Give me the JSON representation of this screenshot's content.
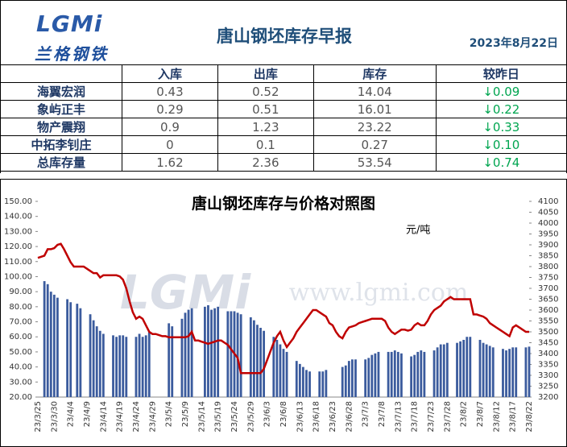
{
  "header": {
    "logo": "LGMi",
    "brand": "兰格钢铁",
    "title": "唐山钢坯库存早报",
    "date": "2023年8月22日"
  },
  "table": {
    "columns": [
      "入库",
      "出库",
      "库存",
      "较昨日"
    ],
    "rows": [
      [
        "海翼宏润",
        "0.43",
        "0.52",
        "14.04",
        "↓0.09"
      ],
      [
        "象屿正丰",
        "0.29",
        "0.51",
        "16.01",
        "↓0.22"
      ],
      [
        "物产震翔",
        "0.9",
        "1.23",
        "23.22",
        "↓0.33"
      ],
      [
        "中拓李钊庄",
        "0",
        "0.1",
        "0.27",
        "↓0.10"
      ],
      [
        "总库存量",
        "1.62",
        "2.36",
        "53.54",
        "↓0.74"
      ]
    ]
  },
  "chart_data": {
    "type": "combo",
    "title": "唐山钢坯库存与价格对照图",
    "y2_unit": "元/吨",
    "watermark": [
      "LGMi",
      "www.lgmi.com"
    ],
    "categories": [
      "23/3/25",
      null,
      null,
      null,
      null,
      "23/3/30",
      null,
      null,
      null,
      null,
      "23/4/4",
      null,
      null,
      null,
      null,
      "23/4/9",
      null,
      null,
      null,
      null,
      "23/4/14",
      null,
      null,
      null,
      null,
      "23/4/19",
      null,
      null,
      null,
      null,
      "23/4/24",
      null,
      null,
      null,
      null,
      "23/4/29",
      null,
      null,
      null,
      null,
      "23/5/4",
      null,
      null,
      null,
      null,
      "23/5/9",
      null,
      null,
      null,
      null,
      "23/5/14",
      null,
      null,
      null,
      null,
      "23/5/19",
      null,
      null,
      null,
      null,
      "23/5/24",
      null,
      null,
      null,
      null,
      "23/5/29",
      null,
      null,
      null,
      null,
      "23/6/3",
      null,
      null,
      null,
      null,
      "23/6/8",
      null,
      null,
      null,
      null,
      "23/6/13",
      null,
      null,
      null,
      null,
      "23/6/18",
      null,
      null,
      null,
      null,
      "23/6/23",
      null,
      null,
      null,
      null,
      "23/6/28",
      null,
      null,
      null,
      null,
      "23/7/3",
      null,
      null,
      null,
      null,
      "23/7/8",
      null,
      null,
      null,
      null,
      "23/7/13",
      null,
      null,
      null,
      null,
      "23/7/18",
      null,
      null,
      null,
      null,
      "23/7/23",
      null,
      null,
      null,
      null,
      "23/7/28",
      null,
      null,
      null,
      null,
      "23/8/2",
      null,
      null,
      null,
      null,
      "23/8/7",
      null,
      null,
      null,
      null,
      "23/8/12",
      null,
      null,
      null,
      null,
      "23/8/17",
      null,
      null,
      null,
      null,
      "23/8/22"
    ],
    "series": [
      {
        "type": "bar",
        "color": "#3b5b9d",
        "values": [
          null,
          null,
          97,
          95,
          90,
          88,
          86,
          null,
          null,
          85,
          83,
          null,
          82,
          79,
          null,
          null,
          75,
          71,
          67,
          64,
          62,
          null,
          null,
          61,
          60,
          61,
          61,
          60,
          null,
          null,
          60,
          62,
          60,
          61,
          63,
          null,
          null,
          null,
          null,
          null,
          69,
          67,
          null,
          null,
          72,
          76,
          78,
          79,
          null,
          null,
          null,
          80,
          81,
          78,
          79,
          80,
          null,
          null,
          77,
          77,
          77,
          76,
          75,
          null,
          null,
          73,
          71,
          68,
          66,
          64,
          null,
          null,
          60,
          58,
          55,
          52,
          50,
          null,
          null,
          44,
          42,
          40,
          38,
          37,
          null,
          null,
          37,
          37,
          38,
          null,
          null,
          null,
          null,
          40,
          41,
          44,
          45,
          45,
          null,
          null,
          45,
          46,
          48,
          49,
          50,
          null,
          null,
          50,
          50,
          51,
          50,
          49,
          null,
          null,
          47,
          48,
          50,
          51,
          50,
          null,
          null,
          51,
          53,
          55,
          55,
          56,
          null,
          null,
          56,
          57,
          58,
          60,
          60,
          null,
          null,
          58,
          56,
          55,
          54,
          53,
          null,
          null,
          52,
          51,
          52,
          53,
          53,
          null,
          null,
          53,
          53.5
        ]
      },
      {
        "type": "line",
        "axis": "y2",
        "color": "#c00000",
        "values": [
          3840,
          3845,
          3850,
          3880,
          3880,
          3885,
          3900,
          3905,
          3880,
          3850,
          3820,
          3800,
          3800,
          3800,
          3800,
          3790,
          3780,
          3770,
          3770,
          3750,
          3760,
          3760,
          3760,
          3760,
          3760,
          3755,
          3740,
          3700,
          3640,
          3590,
          3560,
          3570,
          3560,
          3530,
          3500,
          3490,
          3490,
          3485,
          3480,
          3480,
          3475,
          3475,
          3475,
          3475,
          3475,
          3475,
          3480,
          3500,
          3460,
          3460,
          3455,
          3450,
          3445,
          3450,
          3455,
          3460,
          3460,
          3450,
          3440,
          3420,
          3400,
          3380,
          3310,
          3310,
          3310,
          3310,
          3310,
          3310,
          3310,
          3330,
          3370,
          3410,
          3450,
          3480,
          3500,
          3460,
          3430,
          3450,
          3470,
          3500,
          3520,
          3540,
          3560,
          3580,
          3600,
          3600,
          3590,
          3580,
          3570,
          3540,
          3530,
          3500,
          3480,
          3470,
          3500,
          3520,
          3525,
          3530,
          3540,
          3545,
          3550,
          3555,
          3560,
          3560,
          3560,
          3560,
          3550,
          3520,
          3500,
          3490,
          3500,
          3510,
          3510,
          3505,
          3510,
          3530,
          3540,
          3530,
          3530,
          3550,
          3580,
          3600,
          3610,
          3620,
          3640,
          3650,
          3660,
          3650,
          3650,
          3650,
          3650,
          3650,
          3650,
          3580,
          3580,
          3575,
          3570,
          3560,
          3540,
          3530,
          3520,
          3510,
          3500,
          3490,
          3480,
          3520,
          3530,
          3520,
          3510,
          3500,
          3500
        ]
      }
    ],
    "ylim": [
      20,
      150
    ],
    "yticks": [
      {
        "value": 20,
        "label": "20.00"
      },
      {
        "value": 30,
        "label": "30.00"
      },
      {
        "value": 40,
        "label": "40.00"
      },
      {
        "value": 50,
        "label": "50.00"
      },
      {
        "value": 60,
        "label": "60.00"
      },
      {
        "value": 70,
        "label": "70.00"
      },
      {
        "value": 80,
        "label": "80.00"
      },
      {
        "value": 90,
        "label": "90.00"
      },
      {
        "value": 100,
        "label": "100.00"
      },
      {
        "value": 110,
        "label": "110.00"
      },
      {
        "value": 120,
        "label": "120.00"
      },
      {
        "value": 130,
        "label": "130.00"
      },
      {
        "value": 140,
        "label": "140.00"
      },
      {
        "value": 150,
        "label": "150.00"
      }
    ],
    "y2lim": [
      3200,
      4100
    ],
    "y2ticks": [
      3200,
      3250,
      3300,
      3350,
      3400,
      3450,
      3500,
      3550,
      3600,
      3650,
      3700,
      3750,
      3800,
      3850,
      3900,
      3950,
      4000,
      4050,
      4100
    ]
  }
}
